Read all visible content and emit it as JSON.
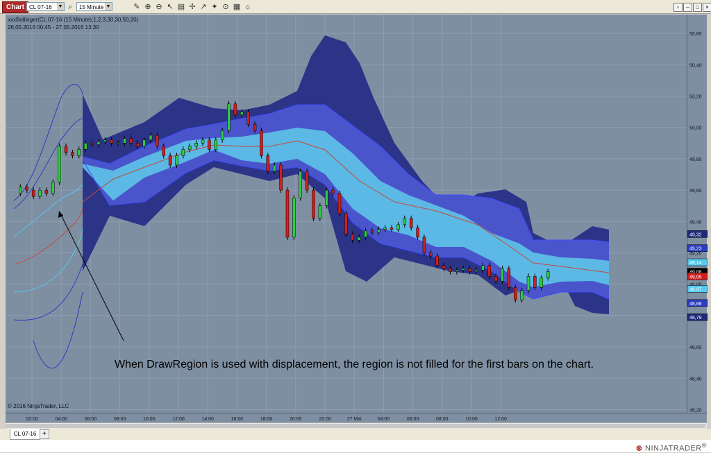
{
  "toolbar": {
    "chart_label": "Chart",
    "instrument": "CL 07-16",
    "interval": "15 Minute",
    "icons": [
      "search-icon",
      "pencil-icon",
      "zoom-in-icon",
      "zoom-out-icon",
      "pointer-icon",
      "data-box-icon",
      "crosshair-icon",
      "draw-icon",
      "properties-icon",
      "refresh-icon"
    ]
  },
  "window_controls": [
    "restore",
    "maximize",
    "close"
  ],
  "chart": {
    "indicator_label": "xxxBollinger(CL 07-16 (15 Minute),1,2,3,30,30,50,20)",
    "date_range": "26.05.2016 00:45 - 27.05.2016 13:30",
    "copyright": "© 2016 NinjaTrader, LLC",
    "annotation": "When DrawRegion is used with displacement, the region is not filled for the first bars on the chart."
  },
  "chart_data": {
    "type": "candlestick",
    "ylim": [
      48.18,
      50.72
    ],
    "y_ticks": [
      "50,60",
      "50,40",
      "50,20",
      "50,00",
      "49,80",
      "49,60",
      "49,40",
      "49,20",
      "49,00",
      "48,80",
      "48,60",
      "48,40",
      "48,20"
    ],
    "x_ticks": [
      "02:00",
      "04:00",
      "06:00",
      "08:00",
      "10:00",
      "12:00",
      "14:00",
      "16:00",
      "18:00",
      "20:00",
      "22:00",
      "27 Mai",
      "04:00",
      "06:00",
      "08:00",
      "10:00",
      "12:00"
    ],
    "last_values": [
      {
        "label": "49,32",
        "value": 49.32,
        "color": "#1d2a78"
      },
      {
        "label": "49,23",
        "value": 49.23,
        "color": "#2a3cc0"
      },
      {
        "label": "49,14",
        "value": 49.14,
        "color": "#55c8ee"
      },
      {
        "label": "49,08",
        "value": 49.08,
        "color": "#000000"
      },
      {
        "label": "49,05",
        "value": 49.05,
        "color": "#d01f1f"
      },
      {
        "label": "48,97",
        "value": 48.97,
        "color": "#55c8ee"
      },
      {
        "label": "48,88",
        "value": 48.88,
        "color": "#2a3cc0"
      },
      {
        "label": "48,79",
        "value": 48.79,
        "color": "#1d2a78"
      }
    ],
    "grid": true,
    "colors": {
      "background": "#7f8fa2",
      "band_outer": "#2c3488",
      "band_middle": "#4a55cc",
      "band_inner": "#5cb8e4",
      "midline": "#c44a3a",
      "up_candle": "#2ecc40",
      "down_candle": "#d01f1f"
    }
  },
  "tabs": [
    {
      "label": "CL 07-16"
    }
  ],
  "brand": {
    "name": "NINJATRADER"
  }
}
